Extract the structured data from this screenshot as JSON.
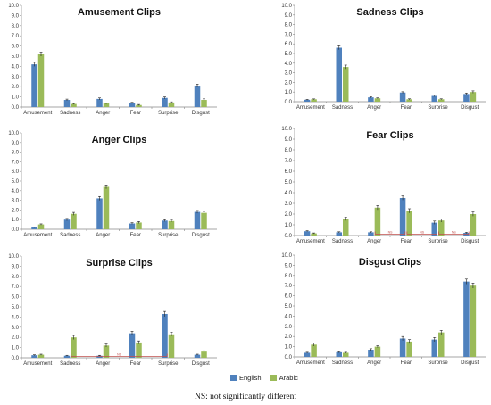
{
  "chart_data": [
    {
      "type": "bar",
      "title": "Amusement Clips",
      "categories": [
        "Amusement",
        "Sadness",
        "Anger",
        "Fear",
        "Surprise",
        "Disgust"
      ],
      "ylim": [
        0,
        10
      ],
      "yticks": [
        "0.0",
        "1.0",
        "2.0",
        "3.0",
        "4.0",
        "5.0",
        "6.0",
        "7.0",
        "8.0",
        "9.0",
        "10.0"
      ],
      "series": [
        {
          "name": "English",
          "values": [
            4.2,
            0.7,
            0.8,
            0.4,
            0.9,
            2.1
          ],
          "errors": [
            0.2,
            0.08,
            0.1,
            0.06,
            0.1,
            0.15
          ]
        },
        {
          "name": "Arabic",
          "values": [
            5.2,
            0.3,
            0.35,
            0.2,
            0.45,
            0.7
          ],
          "errors": [
            0.2,
            0.05,
            0.06,
            0.05,
            0.06,
            0.1
          ]
        }
      ],
      "ns": []
    },
    {
      "type": "bar",
      "title": "Sadness Clips",
      "categories": [
        "Amusement",
        "Sadness",
        "Anger",
        "Fear",
        "Surprise",
        "Disgust"
      ],
      "ylim": [
        0,
        10
      ],
      "yticks": [
        "0.0",
        "1.0",
        "2.0",
        "3.0",
        "4.0",
        "5.0",
        "6.0",
        "7.0",
        "8.0",
        "9.0",
        "10.0"
      ],
      "series": [
        {
          "name": "English",
          "values": [
            0.2,
            5.6,
            0.45,
            0.95,
            0.6,
            0.8
          ],
          "errors": [
            0.04,
            0.2,
            0.06,
            0.08,
            0.08,
            0.1
          ]
        },
        {
          "name": "Arabic",
          "values": [
            0.25,
            3.6,
            0.35,
            0.25,
            0.25,
            1.0
          ],
          "errors": [
            0.04,
            0.2,
            0.05,
            0.05,
            0.05,
            0.12
          ]
        }
      ],
      "ns": []
    },
    {
      "type": "bar",
      "title": "Anger Clips",
      "categories": [
        "Amusement",
        "Sadness",
        "Anger",
        "Fear",
        "Surprise",
        "Disgust"
      ],
      "ylim": [
        0,
        10
      ],
      "yticks": [
        "0.0",
        "1.0",
        "2.0",
        "3.0",
        "4.0",
        "5.0",
        "6.0",
        "7.0",
        "8.0",
        "9.0",
        "10.0"
      ],
      "series": [
        {
          "name": "English",
          "values": [
            0.2,
            1.0,
            3.2,
            0.6,
            0.9,
            1.8
          ],
          "errors": [
            0.04,
            0.12,
            0.2,
            0.08,
            0.1,
            0.15
          ]
        },
        {
          "name": "Arabic",
          "values": [
            0.5,
            1.6,
            4.4,
            0.7,
            0.85,
            1.7
          ],
          "errors": [
            0.06,
            0.15,
            0.2,
            0.1,
            0.1,
            0.15
          ]
        }
      ],
      "ns": []
    },
    {
      "type": "bar",
      "title": "Fear Clips",
      "categories": [
        "Amusement",
        "Sadness",
        "Anger",
        "Fear",
        "Surprise",
        "Disgust"
      ],
      "ylim": [
        0,
        10
      ],
      "yticks": [
        "0.0",
        "1.0",
        "2.0",
        "3.0",
        "4.0",
        "5.0",
        "6.0",
        "7.0",
        "8.0",
        "9.0",
        "10.0"
      ],
      "series": [
        {
          "name": "English",
          "values": [
            0.4,
            0.3,
            0.3,
            3.5,
            1.2,
            0.25
          ],
          "errors": [
            0.05,
            0.05,
            0.05,
            0.2,
            0.15,
            0.05
          ]
        },
        {
          "name": "Arabic",
          "values": [
            0.2,
            1.55,
            2.6,
            2.3,
            1.4,
            2.0
          ],
          "errors": [
            0.04,
            0.15,
            0.2,
            0.2,
            0.15,
            0.2
          ]
        }
      ],
      "ns": [
        {
          "from": 2,
          "to": 3,
          "label": "NS"
        },
        {
          "from": 3,
          "to": 4,
          "label": "NS"
        },
        {
          "from": 4,
          "to": 5,
          "label": "NS"
        }
      ]
    },
    {
      "type": "bar",
      "title": "Surprise Clips",
      "categories": [
        "Amusement",
        "Sadness",
        "Anger",
        "Fear",
        "Surprise",
        "Disgust"
      ],
      "ylim": [
        0,
        10
      ],
      "yticks": [
        "0.0",
        "1.0",
        "2.0",
        "3.0",
        "4.0",
        "5.0",
        "6.0",
        "7.0",
        "8.0",
        "9.0",
        "10.0"
      ],
      "series": [
        {
          "name": "English",
          "values": [
            0.25,
            0.2,
            0.2,
            2.4,
            4.3,
            0.3
          ],
          "errors": [
            0.04,
            0.04,
            0.04,
            0.2,
            0.25,
            0.05
          ]
        },
        {
          "name": "Arabic",
          "values": [
            0.3,
            2.0,
            1.2,
            1.5,
            2.3,
            0.6
          ],
          "errors": [
            0.05,
            0.2,
            0.15,
            0.15,
            0.2,
            0.08
          ]
        }
      ],
      "ns": [
        {
          "from": 1,
          "to": 4,
          "label": "NS"
        }
      ]
    },
    {
      "type": "bar",
      "title": "Disgust Clips",
      "categories": [
        "Amusement",
        "Sadness",
        "Anger",
        "Fear",
        "Surprise",
        "Disgust"
      ],
      "ylim": [
        0,
        10
      ],
      "yticks": [
        "0.0",
        "1.0",
        "2.0",
        "3.0",
        "4.0",
        "5.0",
        "6.0",
        "7.0",
        "8.0",
        "9.0",
        "10.0"
      ],
      "series": [
        {
          "name": "English",
          "values": [
            0.4,
            0.45,
            0.7,
            1.8,
            1.7,
            7.4
          ],
          "errors": [
            0.05,
            0.06,
            0.1,
            0.2,
            0.2,
            0.25
          ]
        },
        {
          "name": "Arabic",
          "values": [
            1.2,
            0.4,
            1.0,
            1.5,
            2.4,
            7.0
          ],
          "errors": [
            0.15,
            0.05,
            0.1,
            0.2,
            0.2,
            0.25
          ]
        }
      ],
      "ns": []
    }
  ],
  "legend": {
    "english": "English",
    "arabic": "Arabic"
  },
  "colors": {
    "english": "#4f81bd",
    "arabic": "#9bbb59",
    "ns": "#c0504d"
  },
  "footnote": "NS: not significantly different"
}
